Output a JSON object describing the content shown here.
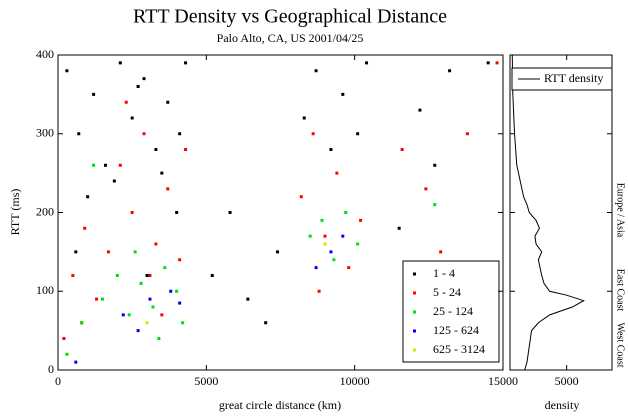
{
  "chart_data": [
    {
      "type": "scatter",
      "title": "RTT Density vs Geographical Distance",
      "subtitle": "Palo Alto, CA, US   2001/04/25",
      "x_label": "great circle distance (km)",
      "y_label": "RTT (ms)",
      "xlim": [
        0,
        15000
      ],
      "xticks": [
        0,
        5000,
        10000,
        15000
      ],
      "ylim": [
        0,
        400
      ],
      "yticks": [
        0,
        100,
        200,
        300,
        400
      ],
      "legend": "bottom-right",
      "series": [
        {
          "name": "1 - 4",
          "color": "#000000",
          "x": [
            300,
            700,
            1200,
            1600,
            2100,
            2500,
            2900,
            3300,
            3700,
            4100,
            4300,
            1000,
            1900,
            2700,
            3500,
            5200,
            5800,
            6400,
            7000,
            7400,
            8300,
            8700,
            9200,
            9600,
            10100,
            10400,
            11500,
            12200,
            12700,
            13200,
            14500,
            600,
            3000,
            4000
          ],
          "values": [
            380,
            300,
            350,
            260,
            390,
            320,
            370,
            280,
            340,
            300,
            390,
            220,
            240,
            360,
            250,
            120,
            200,
            90,
            60,
            150,
            320,
            380,
            280,
            350,
            300,
            390,
            180,
            330,
            260,
            380,
            390,
            150,
            120,
            200
          ]
        },
        {
          "name": "5 - 24",
          "color": "#ff0000",
          "x": [
            200,
            500,
            900,
            1300,
            1700,
            2100,
            2500,
            2900,
            3300,
            3700,
            4100,
            4300,
            2300,
            3100,
            8200,
            8600,
            9000,
            9400,
            9800,
            10200,
            11600,
            12400,
            12900,
            13800,
            14800,
            800,
            3500,
            8800
          ],
          "values": [
            40,
            120,
            180,
            90,
            150,
            260,
            200,
            300,
            160,
            230,
            140,
            280,
            340,
            120,
            220,
            300,
            170,
            250,
            130,
            190,
            280,
            230,
            150,
            300,
            390,
            60,
            70,
            100
          ]
        },
        {
          "name": "25 - 124",
          "color": "#00e000",
          "x": [
            300,
            800,
            1500,
            2000,
            2400,
            2800,
            3200,
            3600,
            4000,
            4200,
            2600,
            3400,
            8500,
            8900,
            9300,
            9700,
            10100,
            12700,
            13800,
            1200
          ],
          "values": [
            20,
            60,
            90,
            120,
            70,
            110,
            80,
            130,
            100,
            60,
            150,
            40,
            170,
            190,
            140,
            200,
            160,
            210,
            40,
            260
          ]
        },
        {
          "name": "125 - 624",
          "color": "#0000ff",
          "x": [
            600,
            2200,
            2700,
            3100,
            3800,
            4100,
            8700,
            9200,
            9600,
            13800
          ],
          "values": [
            10,
            70,
            50,
            90,
            100,
            85,
            130,
            150,
            170,
            20
          ]
        },
        {
          "name": "625 - 3124",
          "color": "#e0e000",
          "x": [
            3000,
            9000,
            13800
          ],
          "values": [
            60,
            160,
            30
          ]
        }
      ]
    },
    {
      "type": "line",
      "x_label": "density",
      "xlim": [
        0,
        9000
      ],
      "xticks": [
        5000
      ],
      "ylim": [
        0,
        400
      ],
      "yticks": [
        0,
        100,
        200,
        300,
        400
      ],
      "legend": "top-right",
      "annotations": [
        "West Coast",
        "East Coast",
        "Europe / Asia"
      ],
      "series": [
        {
          "name": "RTT density",
          "color": "#000000",
          "x": [
            1300,
            1500,
            1700,
            1900,
            2500,
            3500,
            5500,
            6500,
            5000,
            3500,
            3000,
            2800,
            2500,
            2800,
            2300,
            2200,
            2600,
            2300,
            1700,
            1500,
            1200,
            900,
            600,
            400,
            250,
            200
          ],
          "values": [
            0,
            10,
            30,
            50,
            60,
            70,
            80,
            88,
            95,
            100,
            110,
            120,
            140,
            150,
            160,
            170,
            180,
            190,
            200,
            210,
            220,
            240,
            260,
            300,
            350,
            400
          ]
        }
      ]
    }
  ]
}
